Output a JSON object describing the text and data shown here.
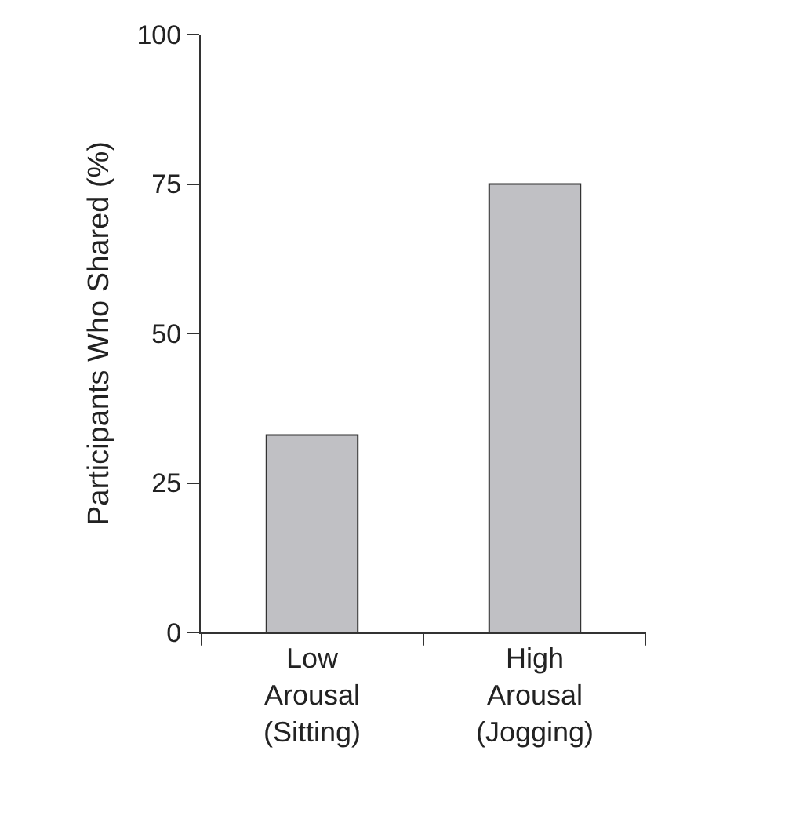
{
  "chart_data": {
    "type": "bar",
    "ylabel": "Participants Who Shared (%)",
    "categories": [
      "Low\nArousal\n(Sitting)",
      "High\nArousal\n(Jogging)"
    ],
    "values": [
      33,
      75
    ],
    "color": "#c0c0c4",
    "ylim": [
      0,
      100
    ],
    "yticks": [
      0,
      25,
      50,
      75,
      100
    ],
    "grid": false,
    "legend": false
  }
}
